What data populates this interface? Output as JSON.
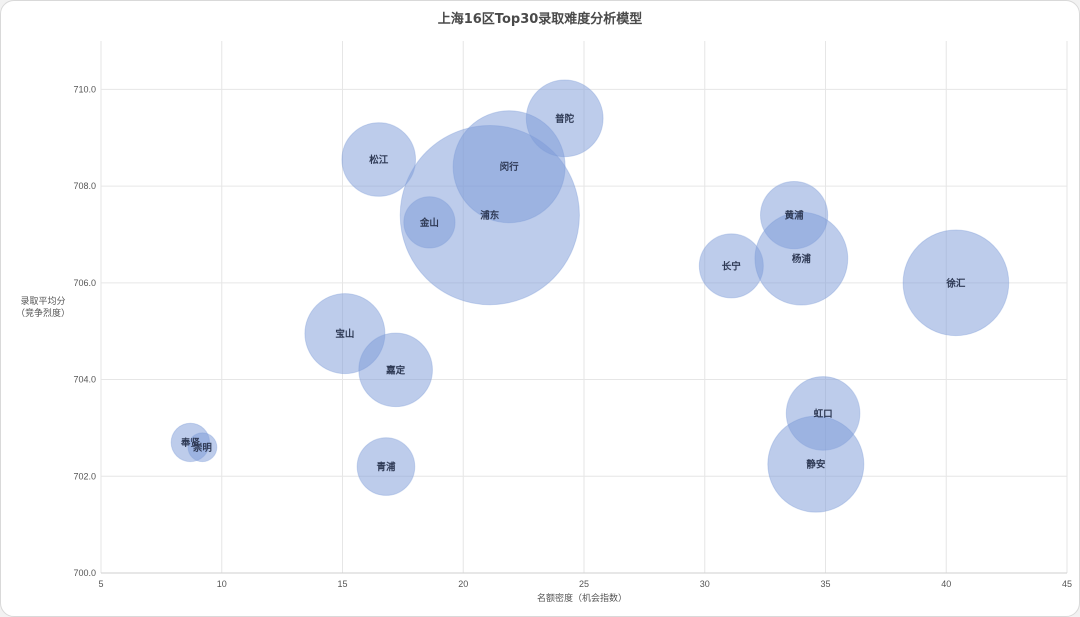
{
  "chart_data": {
    "type": "bubble",
    "title": "上海16区Top30录取难度分析模型",
    "xlabel": "名额密度（机会指数）",
    "ylabel_lines": [
      "录取平均分",
      "（竞争烈度）"
    ],
    "xlim": [
      5,
      45
    ],
    "ylim": [
      700,
      711
    ],
    "x_ticks": [
      5,
      10,
      15,
      20,
      25,
      30,
      35,
      40,
      45
    ],
    "y_ticks": [
      700.0,
      702.0,
      704.0,
      706.0,
      708.0,
      710.0
    ],
    "y_tick_labels": [
      "700.0",
      "702.0",
      "704.0",
      "706.0",
      "708.0",
      "710.0"
    ],
    "grid": true,
    "bubble_color": "#7b9ad8",
    "bubble_opacity": 0.5,
    "size_unit": "relative",
    "points": [
      {
        "label": "浦东",
        "x": 21.1,
        "y": 707.4,
        "size": 28
      },
      {
        "label": "闵行",
        "x": 21.9,
        "y": 708.4,
        "size": 17.5
      },
      {
        "label": "普陀",
        "x": 24.2,
        "y": 709.4,
        "size": 12
      },
      {
        "label": "松江",
        "x": 16.5,
        "y": 708.55,
        "size": 11.5
      },
      {
        "label": "金山",
        "x": 18.6,
        "y": 707.25,
        "size": 8
      },
      {
        "label": "黄浦",
        "x": 33.7,
        "y": 707.4,
        "size": 10.5
      },
      {
        "label": "长宁",
        "x": 31.1,
        "y": 706.35,
        "size": 10
      },
      {
        "label": "杨浦",
        "x": 34.0,
        "y": 706.5,
        "size": 14.5
      },
      {
        "label": "徐汇",
        "x": 40.4,
        "y": 706.0,
        "size": 16.5
      },
      {
        "label": "宝山",
        "x": 15.1,
        "y": 704.95,
        "size": 12.5
      },
      {
        "label": "嘉定",
        "x": 17.2,
        "y": 704.2,
        "size": 11.5
      },
      {
        "label": "虹口",
        "x": 34.9,
        "y": 703.3,
        "size": 11.5
      },
      {
        "label": "静安",
        "x": 34.6,
        "y": 702.25,
        "size": 15
      },
      {
        "label": "青浦",
        "x": 16.8,
        "y": 702.2,
        "size": 9
      },
      {
        "label": "奉贤",
        "x": 8.7,
        "y": 702.7,
        "size": 6
      },
      {
        "label": "崇明",
        "x": 9.2,
        "y": 702.6,
        "size": 4.5
      }
    ]
  }
}
